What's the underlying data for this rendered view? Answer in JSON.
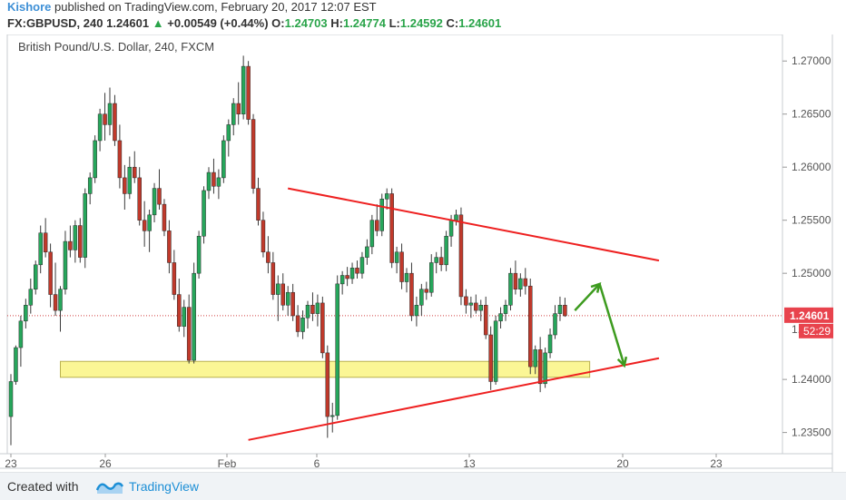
{
  "header": {
    "author": "Kishore",
    "published_text": "published on TradingView.com, February 20, 2017 12:07 EST",
    "symbol": "FX:GBPUSD, 240",
    "last": "1.24601",
    "change": "+0.00549 (+0.44%)",
    "o_label": "O:",
    "o_value": "1.24703",
    "h_label": "H:",
    "h_value": "1.24774",
    "l_label": "L:",
    "l_value": "1.24592",
    "c_label": "C:",
    "c_value": "1.24601"
  },
  "footer": {
    "created_with": "Created with",
    "brand": "TradingView"
  },
  "chart_data": {
    "type": "candlestick",
    "title": "British Pound/U.S. Dollar, 240, FXCM",
    "ylim": [
      1.233,
      1.2725
    ],
    "yticks": [
      "1.27000",
      "1.26500",
      "1.26000",
      "1.25500",
      "1.25000",
      "1.24000",
      "1.23500"
    ],
    "xticks": [
      "23",
      "26",
      "Feb",
      "6",
      "13",
      "20",
      "23"
    ],
    "last_price_label": "1.24601",
    "countdown_label": "52:29",
    "partial_tick_label": "1.",
    "colors": {
      "up": "#26a65b",
      "down": "#c0392b",
      "trend": "#ee2020",
      "arrow": "#3d9b1f",
      "zone": "#fbf695"
    },
    "candles": [
      [
        1.2365,
        1.2405,
        1.2338,
        1.2398
      ],
      [
        1.2398,
        1.2432,
        1.2395,
        1.243
      ],
      [
        1.243,
        1.246,
        1.2412,
        1.2455
      ],
      [
        1.2455,
        1.2476,
        1.2448,
        1.247
      ],
      [
        1.247,
        1.2495,
        1.2462,
        1.2485
      ],
      [
        1.2485,
        1.2512,
        1.248,
        1.2508
      ],
      [
        1.2508,
        1.2545,
        1.25,
        1.2538
      ],
      [
        1.2538,
        1.2552,
        1.2515,
        1.252
      ],
      [
        1.252,
        1.2528,
        1.2468,
        1.248
      ],
      [
        1.248,
        1.251,
        1.246,
        1.2465
      ],
      [
        1.2465,
        1.2488,
        1.2445,
        1.2485
      ],
      [
        1.2485,
        1.254,
        1.248,
        1.253
      ],
      [
        1.253,
        1.2545,
        1.2515,
        1.2522
      ],
      [
        1.2522,
        1.255,
        1.251,
        1.2545
      ],
      [
        1.2545,
        1.2552,
        1.251,
        1.2515
      ],
      [
        1.2515,
        1.258,
        1.2505,
        1.2575
      ],
      [
        1.2575,
        1.2595,
        1.2565,
        1.259
      ],
      [
        1.259,
        1.263,
        1.2585,
        1.2625
      ],
      [
        1.2625,
        1.2655,
        1.2615,
        1.265
      ],
      [
        1.265,
        1.267,
        1.2625,
        1.264
      ],
      [
        1.264,
        1.2675,
        1.263,
        1.266
      ],
      [
        1.266,
        1.2668,
        1.262,
        1.2625
      ],
      [
        1.2625,
        1.264,
        1.258,
        1.259
      ],
      [
        1.259,
        1.2602,
        1.256,
        1.2575
      ],
      [
        1.2575,
        1.261,
        1.257,
        1.26
      ],
      [
        1.26,
        1.2615,
        1.2585,
        1.259
      ],
      [
        1.259,
        1.26,
        1.2545,
        1.255
      ],
      [
        1.255,
        1.2568,
        1.2525,
        1.254
      ],
      [
        1.254,
        1.256,
        1.252,
        1.2555
      ],
      [
        1.2555,
        1.2585,
        1.2548,
        1.258
      ],
      [
        1.258,
        1.2598,
        1.256,
        1.2565
      ],
      [
        1.2565,
        1.257,
        1.2535,
        1.254
      ],
      [
        1.254,
        1.255,
        1.25,
        1.251
      ],
      [
        1.251,
        1.2522,
        1.2475,
        1.248
      ],
      [
        1.248,
        1.2495,
        1.2445,
        1.245
      ],
      [
        1.245,
        1.2475,
        1.244,
        1.2468
      ],
      [
        1.2468,
        1.248,
        1.2415,
        1.2418
      ],
      [
        1.2418,
        1.251,
        1.2415,
        1.25
      ],
      [
        1.25,
        1.254,
        1.2495,
        1.2535
      ],
      [
        1.2535,
        1.2582,
        1.2528,
        1.2578
      ],
      [
        1.2578,
        1.26,
        1.257,
        1.2595
      ],
      [
        1.2595,
        1.2608,
        1.2575,
        1.2582
      ],
      [
        1.2582,
        1.2598,
        1.257,
        1.259
      ],
      [
        1.259,
        1.263,
        1.2585,
        1.2625
      ],
      [
        1.2625,
        1.2645,
        1.261,
        1.264
      ],
      [
        1.264,
        1.2665,
        1.263,
        1.266
      ],
      [
        1.266,
        1.268,
        1.264,
        1.265
      ],
      [
        1.265,
        1.2705,
        1.2645,
        1.2695
      ],
      [
        1.2695,
        1.27,
        1.264,
        1.2645
      ],
      [
        1.2645,
        1.265,
        1.2575,
        1.258
      ],
      [
        1.258,
        1.259,
        1.2545,
        1.255
      ],
      [
        1.255,
        1.2558,
        1.2515,
        1.252
      ],
      [
        1.252,
        1.2535,
        1.25,
        1.251
      ],
      [
        1.251,
        1.252,
        1.2475,
        1.248
      ],
      [
        1.248,
        1.2498,
        1.2455,
        1.249
      ],
      [
        1.249,
        1.25,
        1.2465,
        1.247
      ],
      [
        1.247,
        1.2488,
        1.246,
        1.2482
      ],
      [
        1.2482,
        1.249,
        1.2455,
        1.246
      ],
      [
        1.246,
        1.247,
        1.244,
        1.2445
      ],
      [
        1.2445,
        1.2465,
        1.2438,
        1.2458
      ],
      [
        1.2458,
        1.2474,
        1.2448,
        1.247
      ],
      [
        1.247,
        1.2482,
        1.2455,
        1.2462
      ],
      [
        1.2462,
        1.248,
        1.245,
        1.2472
      ],
      [
        1.2472,
        1.2478,
        1.242,
        1.2425
      ],
      [
        1.2425,
        1.2432,
        1.2345,
        1.2365
      ],
      [
        1.2365,
        1.2378,
        1.235,
        1.2366
      ],
      [
        1.2366,
        1.2498,
        1.2362,
        1.249
      ],
      [
        1.249,
        1.2502,
        1.248,
        1.2498
      ],
      [
        1.2498,
        1.2506,
        1.2488,
        1.2495
      ],
      [
        1.2495,
        1.251,
        1.249,
        1.2505
      ],
      [
        1.2505,
        1.2512,
        1.2495,
        1.25
      ],
      [
        1.25,
        1.252,
        1.2495,
        1.2515
      ],
      [
        1.2515,
        1.2532,
        1.2508,
        1.2525
      ],
      [
        1.2525,
        1.2555,
        1.2518,
        1.255
      ],
      [
        1.255,
        1.2565,
        1.2535,
        1.254
      ],
      [
        1.254,
        1.2575,
        1.2535,
        1.257
      ],
      [
        1.257,
        1.258,
        1.256,
        1.2575
      ],
      [
        1.2575,
        1.258,
        1.2505,
        1.251
      ],
      [
        1.251,
        1.2525,
        1.25,
        1.252
      ],
      [
        1.252,
        1.2528,
        1.2485,
        1.2492
      ],
      [
        1.2492,
        1.2505,
        1.2482,
        1.25
      ],
      [
        1.25,
        1.251,
        1.2455,
        1.246
      ],
      [
        1.246,
        1.2478,
        1.245,
        1.247
      ],
      [
        1.247,
        1.249,
        1.246,
        1.2485
      ],
      [
        1.2485,
        1.2492,
        1.2475,
        1.2482
      ],
      [
        1.2482,
        1.2518,
        1.2478,
        1.251
      ],
      [
        1.251,
        1.252,
        1.25,
        1.2515
      ],
      [
        1.2515,
        1.2525,
        1.2502,
        1.2508
      ],
      [
        1.2508,
        1.254,
        1.2502,
        1.2535
      ],
      [
        1.2535,
        1.2555,
        1.2525,
        1.255
      ],
      [
        1.255,
        1.256,
        1.2545,
        1.2555
      ],
      [
        1.2555,
        1.2562,
        1.247,
        1.2478
      ],
      [
        1.2478,
        1.2485,
        1.2462,
        1.247
      ],
      [
        1.247,
        1.2478,
        1.2458,
        1.2472
      ],
      [
        1.2472,
        1.248,
        1.2462,
        1.2465
      ],
      [
        1.2465,
        1.2475,
        1.2455,
        1.247
      ],
      [
        1.247,
        1.2478,
        1.2438,
        1.2442
      ],
      [
        1.2442,
        1.245,
        1.239,
        1.2398
      ],
      [
        1.2398,
        1.246,
        1.2395,
        1.2455
      ],
      [
        1.2455,
        1.2468,
        1.2448,
        1.2462
      ],
      [
        1.2462,
        1.2475,
        1.2455,
        1.247
      ],
      [
        1.247,
        1.2505,
        1.2465,
        1.25
      ],
      [
        1.25,
        1.2512,
        1.248,
        1.2485
      ],
      [
        1.2485,
        1.25,
        1.2478,
        1.2495
      ],
      [
        1.2495,
        1.2505,
        1.248,
        1.2488
      ],
      [
        1.2488,
        1.2495,
        1.2405,
        1.2412
      ],
      [
        1.2412,
        1.2432,
        1.2405,
        1.2428
      ],
      [
        1.2428,
        1.244,
        1.2388,
        1.2396
      ],
      [
        1.2396,
        1.243,
        1.2392,
        1.2425
      ],
      [
        1.2425,
        1.2448,
        1.242,
        1.2442
      ],
      [
        1.2442,
        1.247,
        1.2438,
        1.2462
      ],
      [
        1.2462,
        1.2478,
        1.2455,
        1.247
      ],
      [
        1.247,
        1.2477,
        1.2459,
        1.246
      ]
    ],
    "overlays": {
      "resistance_line": [
        [
          56,
          1.258
        ],
        [
          131,
          1.2512
        ]
      ],
      "support_line": [
        [
          48,
          1.2343
        ],
        [
          131,
          1.242
        ]
      ],
      "zone": {
        "x": [
          10,
          117
        ],
        "y": [
          1.2402,
          1.2417
        ]
      },
      "arrows": [
        [
          [
            114,
            1.2465
          ],
          [
            119,
            1.249
          ]
        ],
        [
          [
            119,
            1.249
          ],
          [
            124,
            1.2413
          ]
        ]
      ],
      "price_line": 1.24601
    }
  }
}
